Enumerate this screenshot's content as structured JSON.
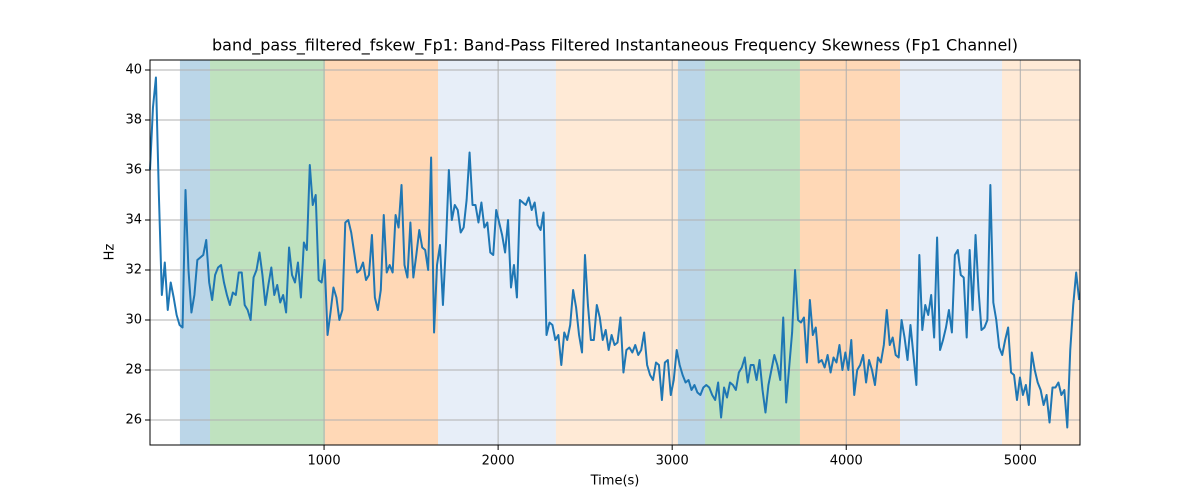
{
  "chart_data": {
    "type": "line",
    "title": "band_pass_filtered_fskew_Fp1: Band-Pass Filtered Instantaneous Frequency Skewness (Fp1 Channel)",
    "x_label": "Time(s)",
    "y_label": "Hz",
    "xlim": [
      0,
      5343
    ],
    "ylim": [
      25,
      40.4
    ],
    "xticks": [
      1000,
      2000,
      3000,
      4000,
      5000
    ],
    "yticks": [
      26,
      28,
      30,
      32,
      34,
      36,
      38,
      40
    ],
    "grid": true,
    "spans": [
      {
        "start": 172,
        "end": 345,
        "color": "rgba(31,119,180,0.3)"
      },
      {
        "start": 345,
        "end": 1005,
        "color": "rgba(44,160,44,0.3)"
      },
      {
        "start": 1005,
        "end": 1655,
        "color": "rgba(255,127,14,0.3)"
      },
      {
        "start": 1655,
        "end": 2332,
        "color": "rgba(174,199,232,0.3)"
      },
      {
        "start": 2332,
        "end": 3033,
        "color": "rgba(255,187,120,0.3)"
      },
      {
        "start": 3033,
        "end": 3189,
        "color": "rgba(31,119,180,0.3)"
      },
      {
        "start": 3189,
        "end": 3734,
        "color": "rgba(44,160,44,0.3)"
      },
      {
        "start": 3734,
        "end": 4309,
        "color": "rgba(255,127,14,0.3)"
      },
      {
        "start": 4309,
        "end": 4895,
        "color": "rgba(174,199,232,0.3)"
      },
      {
        "start": 4895,
        "end": 5343,
        "color": "rgba(255,187,120,0.3)"
      }
    ],
    "x": [
      0,
      17,
      34,
      51,
      68,
      85,
      102,
      119,
      136,
      153,
      170,
      187,
      204,
      221,
      238,
      255,
      272,
      289,
      306,
      323,
      340,
      357,
      374,
      391,
      408,
      425,
      442,
      459,
      476,
      493,
      510,
      527,
      544,
      561,
      578,
      595,
      612,
      629,
      646,
      663,
      680,
      697,
      714,
      731,
      748,
      765,
      782,
      799,
      816,
      833,
      850,
      867,
      884,
      901,
      918,
      935,
      952,
      969,
      986,
      1003,
      1020,
      1037,
      1054,
      1071,
      1088,
      1105,
      1122,
      1139,
      1156,
      1173,
      1190,
      1207,
      1224,
      1241,
      1258,
      1275,
      1292,
      1309,
      1326,
      1343,
      1360,
      1377,
      1394,
      1411,
      1428,
      1445,
      1462,
      1479,
      1496,
      1513,
      1530,
      1547,
      1564,
      1581,
      1598,
      1615,
      1632,
      1649,
      1666,
      1683,
      1700,
      1717,
      1734,
      1751,
      1768,
      1785,
      1802,
      1819,
      1836,
      1853,
      1870,
      1887,
      1904,
      1921,
      1938,
      1955,
      1972,
      1989,
      2006,
      2023,
      2040,
      2057,
      2074,
      2091,
      2108,
      2125,
      2142,
      2159,
      2176,
      2193,
      2210,
      2227,
      2244,
      2261,
      2278,
      2295,
      2312,
      2329,
      2346,
      2363,
      2380,
      2397,
      2414,
      2431,
      2448,
      2465,
      2482,
      2499,
      2516,
      2533,
      2550,
      2567,
      2584,
      2601,
      2618,
      2635,
      2652,
      2669,
      2686,
      2703,
      2720,
      2737,
      2754,
      2771,
      2788,
      2805,
      2822,
      2839,
      2856,
      2873,
      2890,
      2907,
      2924,
      2941,
      2958,
      2975,
      2992,
      3009,
      3026,
      3043,
      3060,
      3077,
      3094,
      3111,
      3128,
      3145,
      3162,
      3179,
      3196,
      3213,
      3230,
      3247,
      3264,
      3281,
      3298,
      3315,
      3332,
      3349,
      3366,
      3383,
      3400,
      3417,
      3434,
      3451,
      3468,
      3485,
      3502,
      3519,
      3536,
      3553,
      3570,
      3587,
      3604,
      3621,
      3638,
      3655,
      3672,
      3689,
      3706,
      3723,
      3740,
      3757,
      3774,
      3791,
      3808,
      3825,
      3842,
      3859,
      3876,
      3893,
      3910,
      3927,
      3944,
      3961,
      3978,
      3995,
      4012,
      4029,
      4046,
      4063,
      4080,
      4097,
      4114,
      4131,
      4148,
      4165,
      4182,
      4199,
      4216,
      4233,
      4250,
      4267,
      4284,
      4301,
      4318,
      4335,
      4352,
      4369,
      4386,
      4403,
      4420,
      4437,
      4454,
      4471,
      4488,
      4505,
      4522,
      4539,
      4556,
      4573,
      4590,
      4607,
      4624,
      4641,
      4658,
      4675,
      4692,
      4709,
      4726,
      4743,
      4760,
      4777,
      4794,
      4811,
      4828,
      4845,
      4862,
      4879,
      4896,
      4913,
      4930,
      4947,
      4964,
      4981,
      4998,
      5015,
      5032,
      5049,
      5066,
      5083,
      5100,
      5117,
      5134,
      5151,
      5168,
      5185,
      5202,
      5219,
      5236,
      5253,
      5270,
      5287,
      5304,
      5321,
      5338
    ],
    "series": [
      {
        "color": "#1f77b4",
        "values": [
          36.0,
          38.5,
          39.7,
          35.0,
          31.0,
          32.3,
          30.4,
          31.5,
          30.9,
          30.2,
          29.8,
          29.7,
          35.2,
          32.0,
          30.3,
          31.0,
          32.4,
          32.5,
          32.6,
          33.2,
          31.5,
          30.8,
          31.8,
          32.1,
          32.2,
          31.5,
          31.0,
          30.6,
          31.1,
          31.0,
          31.9,
          31.9,
          30.6,
          30.4,
          30.0,
          31.7,
          32.0,
          32.7,
          31.8,
          30.6,
          31.4,
          32.1,
          31.0,
          31.4,
          30.7,
          31.0,
          30.3,
          32.9,
          31.8,
          31.5,
          32.3,
          30.9,
          33.1,
          32.8,
          36.2,
          34.6,
          35.0,
          31.6,
          31.5,
          32.4,
          29.4,
          30.3,
          31.3,
          30.9,
          30.0,
          30.4,
          33.9,
          34.0,
          33.5,
          32.7,
          31.9,
          32.0,
          32.3,
          31.6,
          31.8,
          33.4,
          30.9,
          30.4,
          31.2,
          34.2,
          31.9,
          32.2,
          31.9,
          34.2,
          33.7,
          35.4,
          32.2,
          31.7,
          33.9,
          31.7,
          32.6,
          33.6,
          32.9,
          32.8,
          32.0,
          36.5,
          29.5,
          32.2,
          33.0,
          30.6,
          33.0,
          36.0,
          34.0,
          34.6,
          34.4,
          33.5,
          33.7,
          34.8,
          36.7,
          34.6,
          34.6,
          33.9,
          34.7,
          33.7,
          33.9,
          32.7,
          32.6,
          34.4,
          33.9,
          33.4,
          32.7,
          34.0,
          31.3,
          32.2,
          30.9,
          34.8,
          34.7,
          34.6,
          34.9,
          34.4,
          34.7,
          33.8,
          33.6,
          34.3,
          29.4,
          29.9,
          29.8,
          29.2,
          29.4,
          28.2,
          29.5,
          29.2,
          29.8,
          31.2,
          30.5,
          29.4,
          28.7,
          32.6,
          30.6,
          29.2,
          29.2,
          30.6,
          30.1,
          29.2,
          29.6,
          28.8,
          29.4,
          29.0,
          29.1,
          30.1,
          27.9,
          28.8,
          28.9,
          28.7,
          29.0,
          28.6,
          28.8,
          29.5,
          28.2,
          27.8,
          27.6,
          28.3,
          28.2,
          26.8,
          28.3,
          28.4,
          27.0,
          27.6,
          28.8,
          28.2,
          27.8,
          27.5,
          27.6,
          27.2,
          27.4,
          27.1,
          27.0,
          27.3,
          27.4,
          27.3,
          27.0,
          26.8,
          27.5,
          26.1,
          27.3,
          26.9,
          27.5,
          27.4,
          27.2,
          27.9,
          28.1,
          28.5,
          27.5,
          28.2,
          28.2,
          27.6,
          28.4,
          27.2,
          26.3,
          27.4,
          28.0,
          28.6,
          28.2,
          27.6,
          30.1,
          26.7,
          28.1,
          29.5,
          32.0,
          30.0,
          29.9,
          30.1,
          28.3,
          30.8,
          29.4,
          29.7,
          28.3,
          28.4,
          28.1,
          28.6,
          27.9,
          28.5,
          28.3,
          29.0,
          28.0,
          28.7,
          28.0,
          29.2,
          27.0,
          28.0,
          28.2,
          28.6,
          27.5,
          28.4,
          28.0,
          27.4,
          28.5,
          28.3,
          29.0,
          30.4,
          29.0,
          29.3,
          28.6,
          28.5,
          30.0,
          29.3,
          28.4,
          29.8,
          28.6,
          27.4,
          32.6,
          29.6,
          30.6,
          30.2,
          31.0,
          29.3,
          33.3,
          28.8,
          29.2,
          29.7,
          30.4,
          29.5,
          32.6,
          32.8,
          31.8,
          31.7,
          29.3,
          32.8,
          30.4,
          33.4,
          31.2,
          29.6,
          29.7,
          30.0,
          35.4,
          30.7,
          30.0,
          28.9,
          28.6,
          29.2,
          29.7,
          27.9,
          27.8,
          26.8,
          27.7,
          27.0,
          27.4,
          26.6,
          28.7,
          28.0,
          27.5,
          27.2,
          26.6,
          27.0,
          25.9,
          27.3,
          27.3,
          27.5,
          27.0,
          27.2,
          25.7,
          28.8,
          30.6,
          31.9,
          30.8
        ]
      }
    ]
  }
}
